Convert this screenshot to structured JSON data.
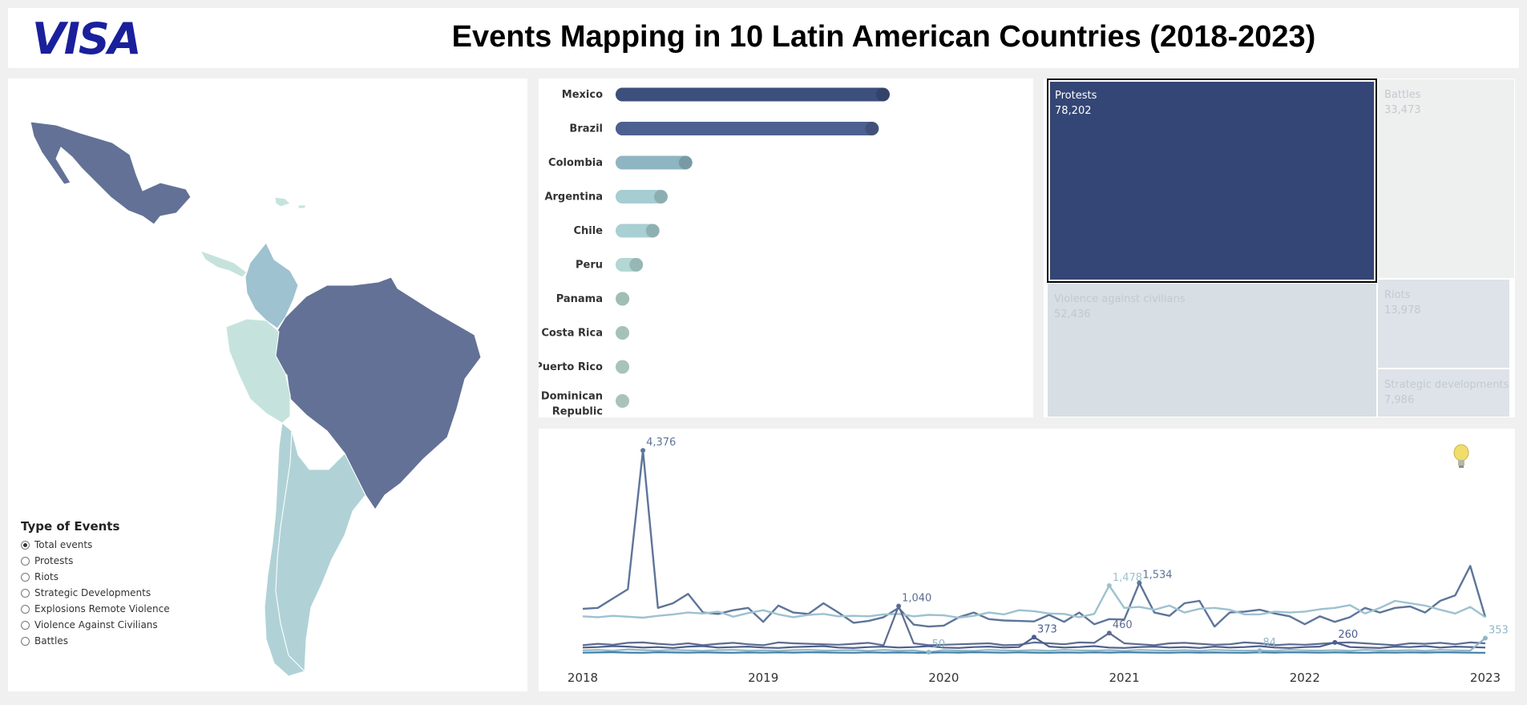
{
  "header": {
    "logo": "VISA",
    "title": "Events Mapping in 10 Latin American Countries (2018-2023)"
  },
  "legend": {
    "title": "Type of Events",
    "options": [
      {
        "label": "Total events",
        "selected": true
      },
      {
        "label": "Protests",
        "selected": false
      },
      {
        "label": "Riots",
        "selected": false
      },
      {
        "label": "Strategic Developments",
        "selected": false
      },
      {
        "label": "Explosions Remote Violence",
        "selected": false
      },
      {
        "label": "Violence Against Civilians",
        "selected": false
      },
      {
        "label": "Battles",
        "selected": false
      }
    ]
  },
  "map": {
    "colors": {
      "high": "#637196",
      "mid": "#9ec2cf",
      "low": "#b0d2d6",
      "lowest": "#c5e3dc"
    }
  },
  "chart_data": [
    {
      "type": "bar",
      "categories": [
        "Mexico",
        "Brazil",
        "Colombia",
        "Argentina",
        "Chile",
        "Peru",
        "Panama",
        "Costa Rica",
        "Puerto Rico",
        "Dominican Republic"
      ],
      "series": [
        {
          "values": [
            100,
            96,
            28,
            19,
            16,
            10,
            5,
            4,
            3.5,
            1.5
          ]
        }
      ],
      "colors": [
        "#3d4f7c",
        "#4d6090",
        "#8fb5c2",
        "#a6cdd1",
        "#a8cfd3",
        "#b2d7d4",
        "#bddfd6",
        "#c3e3d8",
        "#c5e4d9",
        "#c8e6da"
      ]
    },
    {
      "type": "treemap",
      "cells": [
        {
          "name": "Protests",
          "value": 78202,
          "label": "78,202",
          "selected": true
        },
        {
          "name": "Battles",
          "value": 33473,
          "label": "33,473",
          "selected": false
        },
        {
          "name": "Violence against civilians",
          "value": 52436,
          "label": "52,436",
          "selected": false
        },
        {
          "name": "Riots",
          "value": 13978,
          "label": "13,978",
          "selected": false
        },
        {
          "name": "Strategic developments",
          "value": 7986,
          "label": "7,986",
          "selected": false
        }
      ],
      "colors": {
        "selected": "#344675",
        "unselected_light": "#eef0ef",
        "unselected_mid": "#d7dee4",
        "unselected_text": "#c4c9cf"
      }
    },
    {
      "type": "line",
      "xlabels": [
        "2018",
        "2019",
        "2020",
        "2021",
        "2022",
        "2023"
      ],
      "xlim": [
        2018,
        2023
      ],
      "ylim": [
        0,
        4500
      ],
      "series": [
        {
          "color": "#5e7599",
          "values": [
            980,
            1000,
            1200,
            1400,
            4376,
            1000,
            1100,
            1300,
            900,
            870,
            950,
            1000,
            700,
            1050,
            900,
            870,
            1100,
            900,
            680,
            720,
            800,
            1000,
            640,
            600,
            620,
            800,
            900,
            760,
            730,
            720,
            710,
            850,
            700,
            900,
            650,
            760,
            750,
            1534,
            900,
            830,
            1100,
            1150,
            600,
            900,
            920,
            960,
            880,
            820,
            650,
            820,
            700,
            800,
            1000,
            900,
            1000,
            1030,
            900,
            1150,
            1270,
            1900,
            800
          ]
        },
        {
          "color": "#9dc1d0",
          "values": [
            820,
            800,
            830,
            810,
            790,
            830,
            860,
            900,
            880,
            920,
            810,
            890,
            950,
            860,
            800,
            850,
            870,
            820,
            830,
            820,
            860,
            870,
            820,
            850,
            840,
            790,
            830,
            900,
            860,
            950,
            930,
            880,
            870,
            800,
            870,
            1478,
            1000,
            1020,
            960,
            1050,
            900,
            980,
            1000,
            960,
            860,
            860,
            920,
            900,
            920,
            970,
            1000,
            1060,
            880,
            1000,
            1150,
            1100,
            1050,
            960,
            880,
            1020,
            800
          ]
        },
        {
          "color": "#5d6c90",
          "values": [
            200,
            230,
            210,
            250,
            260,
            230,
            210,
            240,
            200,
            230,
            250,
            220,
            200,
            260,
            240,
            230,
            220,
            210,
            230,
            250,
            200,
            1040,
            240,
            200,
            210,
            220,
            230,
            240,
            200,
            210,
            260,
            240,
            220,
            260,
            250,
            460,
            240,
            220,
            200,
            240,
            250,
            230,
            210,
            220,
            260,
            240,
            200,
            220,
            210,
            230,
            250,
            260,
            240,
            220,
            200,
            240,
            230,
            250,
            220,
            260,
            240
          ]
        },
        {
          "color": "#4d5f8d",
          "values": [
            150,
            160,
            180,
            170,
            150,
            160,
            140,
            170,
            180,
            150,
            160,
            170,
            150,
            140,
            160,
            170,
            180,
            150,
            140,
            160,
            170,
            150,
            160,
            180,
            150,
            140,
            160,
            170,
            150,
            160,
            373,
            170,
            150,
            160,
            180,
            150,
            140,
            160,
            170,
            150,
            160,
            140,
            170,
            150,
            160,
            180,
            150,
            140,
            160,
            170,
            260,
            160,
            150,
            140,
            170,
            160,
            180,
            150,
            170,
            160,
            150
          ]
        },
        {
          "color": "#90b7c7",
          "values": [
            90,
            100,
            80,
            110,
            95,
            85,
            100,
            90,
            80,
            95,
            100,
            85,
            90,
            80,
            95,
            100,
            85,
            90,
            95,
            80,
            100,
            85,
            90,
            50,
            95,
            85,
            80,
            100,
            90,
            85,
            95,
            80,
            100,
            90,
            85,
            95,
            80,
            100,
            90,
            85,
            95,
            80,
            100,
            90,
            85,
            84,
            80,
            100,
            90,
            85,
            95,
            80,
            100,
            90,
            85,
            95,
            80,
            100,
            90,
            85,
            353
          ]
        },
        {
          "color": "#3e7fa5",
          "values": [
            40,
            45,
            50,
            42,
            38,
            48,
            44,
            40,
            46,
            42,
            38,
            44,
            40,
            46,
            42,
            48,
            44,
            40,
            38,
            46,
            42,
            44,
            40,
            38,
            46,
            42,
            48,
            44,
            40,
            46,
            42,
            38,
            44,
            40,
            46,
            42,
            48,
            44,
            40,
            38,
            46,
            42,
            44,
            40,
            38,
            46,
            42,
            48,
            44,
            40,
            46,
            42,
            38,
            44,
            40,
            46,
            42,
            48,
            44,
            40,
            38
          ]
        }
      ],
      "annotations": [
        {
          "text": "4,376",
          "series": 0,
          "index": 4
        },
        {
          "text": "1,040",
          "series": 2,
          "index": 21
        },
        {
          "text": "50",
          "series": 4,
          "index": 23
        },
        {
          "text": "460",
          "series": 2,
          "index": 35
        },
        {
          "text": "373",
          "series": 3,
          "index": 30
        },
        {
          "text": "1,478",
          "series": 1,
          "index": 35
        },
        {
          "text": "1,534",
          "series": 0,
          "index": 37
        },
        {
          "text": "84",
          "series": 4,
          "index": 45
        },
        {
          "text": "260",
          "series": 3,
          "index": 50
        },
        {
          "text": "353",
          "series": 4,
          "index": 60
        }
      ]
    }
  ]
}
